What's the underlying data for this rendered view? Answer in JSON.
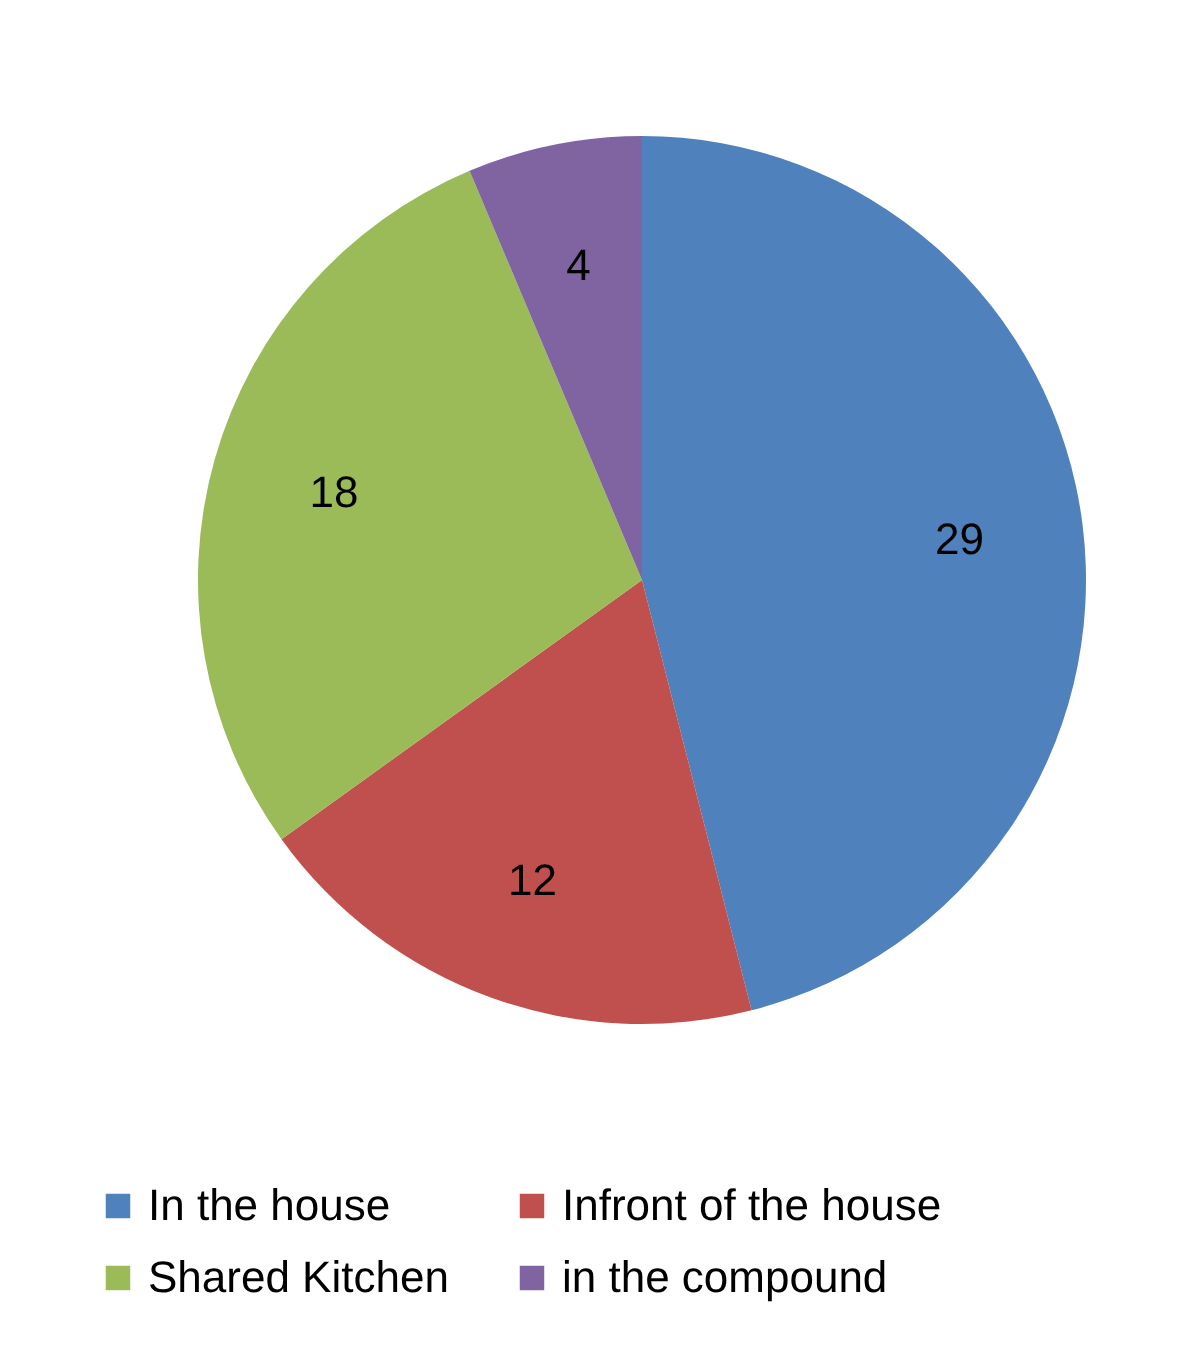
{
  "chart_data": {
    "type": "pie",
    "categories": [
      "In the house",
      "Infront of the house",
      "Shared Kitchen",
      "in the compound"
    ],
    "values": [
      29,
      12,
      18,
      4
    ],
    "colors": [
      "#4f81bd",
      "#c0504d",
      "#9bbb59",
      "#8064a2"
    ],
    "data_labels": true,
    "legend": "bottom"
  }
}
